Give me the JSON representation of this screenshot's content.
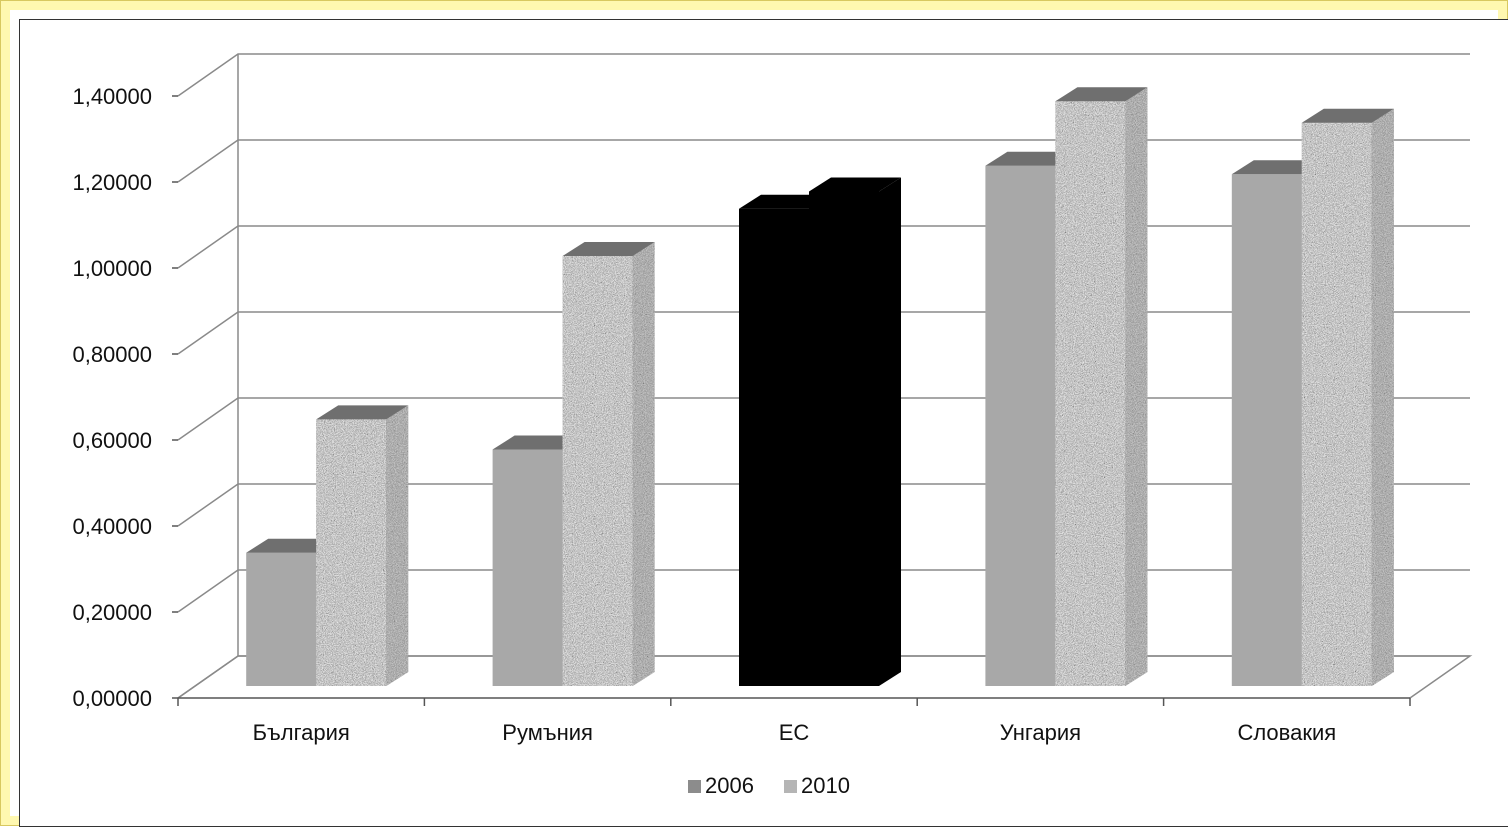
{
  "chart_data": {
    "type": "bar",
    "title": "",
    "xlabel": "",
    "ylabel": "",
    "categories": [
      "България",
      "Румъния",
      "ЕС",
      "Унгария",
      "Словакия"
    ],
    "series": [
      {
        "name": "2006",
        "values": [
          0.31,
          0.55,
          1.11,
          1.21,
          1.19
        ],
        "color": "#a8a8a8"
      },
      {
        "name": "2010",
        "values": [
          0.62,
          1.0,
          1.15,
          1.36,
          1.31
        ],
        "color": "#bdbdbd",
        "texture": "granite"
      }
    ],
    "highlight_category": {
      "name": "ЕС",
      "color": "#000000"
    },
    "ylim": [
      0,
      1.4
    ],
    "yticks": [
      "0,00000",
      "0,20000",
      "0,40000",
      "0,60000",
      "0,80000",
      "1,00000",
      "1,20000",
      "1,40000"
    ],
    "grid": true,
    "style": "3d-clustered-column",
    "legend_position": "bottom-center"
  },
  "legend": {
    "items": [
      {
        "label": "2006",
        "color": "#8c8c8c"
      },
      {
        "label": "2010",
        "color": "#b5b5b5"
      }
    ]
  }
}
